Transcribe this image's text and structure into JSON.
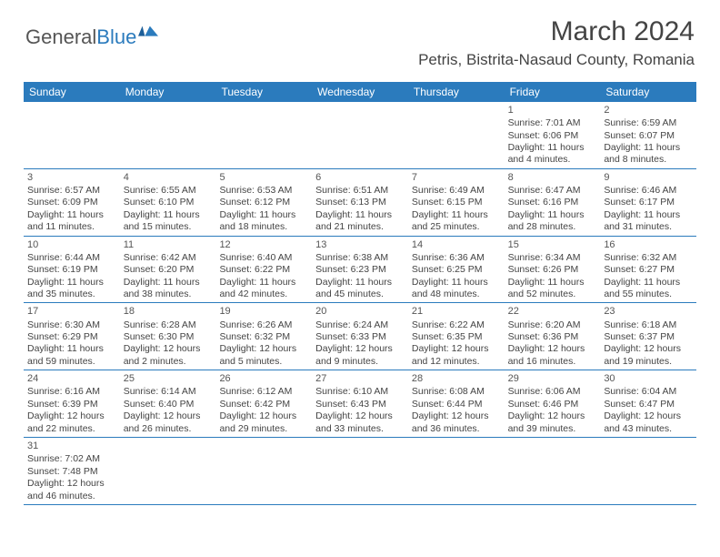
{
  "logo": {
    "text1": "General",
    "text2": "Blue"
  },
  "title": "March 2024",
  "location": "Petris, Bistrita-Nasaud County, Romania",
  "colors": {
    "header_bg": "#2b7bbd",
    "header_text": "#ffffff",
    "body_text": "#444444",
    "border": "#2b7bbd",
    "page_bg": "#ffffff"
  },
  "weekdays": [
    "Sunday",
    "Monday",
    "Tuesday",
    "Wednesday",
    "Thursday",
    "Friday",
    "Saturday"
  ],
  "weeks": [
    [
      null,
      null,
      null,
      null,
      null,
      {
        "n": "1",
        "sr": "Sunrise: 7:01 AM",
        "ss": "Sunset: 6:06 PM",
        "d1": "Daylight: 11 hours",
        "d2": "and 4 minutes."
      },
      {
        "n": "2",
        "sr": "Sunrise: 6:59 AM",
        "ss": "Sunset: 6:07 PM",
        "d1": "Daylight: 11 hours",
        "d2": "and 8 minutes."
      }
    ],
    [
      {
        "n": "3",
        "sr": "Sunrise: 6:57 AM",
        "ss": "Sunset: 6:09 PM",
        "d1": "Daylight: 11 hours",
        "d2": "and 11 minutes."
      },
      {
        "n": "4",
        "sr": "Sunrise: 6:55 AM",
        "ss": "Sunset: 6:10 PM",
        "d1": "Daylight: 11 hours",
        "d2": "and 15 minutes."
      },
      {
        "n": "5",
        "sr": "Sunrise: 6:53 AM",
        "ss": "Sunset: 6:12 PM",
        "d1": "Daylight: 11 hours",
        "d2": "and 18 minutes."
      },
      {
        "n": "6",
        "sr": "Sunrise: 6:51 AM",
        "ss": "Sunset: 6:13 PM",
        "d1": "Daylight: 11 hours",
        "d2": "and 21 minutes."
      },
      {
        "n": "7",
        "sr": "Sunrise: 6:49 AM",
        "ss": "Sunset: 6:15 PM",
        "d1": "Daylight: 11 hours",
        "d2": "and 25 minutes."
      },
      {
        "n": "8",
        "sr": "Sunrise: 6:47 AM",
        "ss": "Sunset: 6:16 PM",
        "d1": "Daylight: 11 hours",
        "d2": "and 28 minutes."
      },
      {
        "n": "9",
        "sr": "Sunrise: 6:46 AM",
        "ss": "Sunset: 6:17 PM",
        "d1": "Daylight: 11 hours",
        "d2": "and 31 minutes."
      }
    ],
    [
      {
        "n": "10",
        "sr": "Sunrise: 6:44 AM",
        "ss": "Sunset: 6:19 PM",
        "d1": "Daylight: 11 hours",
        "d2": "and 35 minutes."
      },
      {
        "n": "11",
        "sr": "Sunrise: 6:42 AM",
        "ss": "Sunset: 6:20 PM",
        "d1": "Daylight: 11 hours",
        "d2": "and 38 minutes."
      },
      {
        "n": "12",
        "sr": "Sunrise: 6:40 AM",
        "ss": "Sunset: 6:22 PM",
        "d1": "Daylight: 11 hours",
        "d2": "and 42 minutes."
      },
      {
        "n": "13",
        "sr": "Sunrise: 6:38 AM",
        "ss": "Sunset: 6:23 PM",
        "d1": "Daylight: 11 hours",
        "d2": "and 45 minutes."
      },
      {
        "n": "14",
        "sr": "Sunrise: 6:36 AM",
        "ss": "Sunset: 6:25 PM",
        "d1": "Daylight: 11 hours",
        "d2": "and 48 minutes."
      },
      {
        "n": "15",
        "sr": "Sunrise: 6:34 AM",
        "ss": "Sunset: 6:26 PM",
        "d1": "Daylight: 11 hours",
        "d2": "and 52 minutes."
      },
      {
        "n": "16",
        "sr": "Sunrise: 6:32 AM",
        "ss": "Sunset: 6:27 PM",
        "d1": "Daylight: 11 hours",
        "d2": "and 55 minutes."
      }
    ],
    [
      {
        "n": "17",
        "sr": "Sunrise: 6:30 AM",
        "ss": "Sunset: 6:29 PM",
        "d1": "Daylight: 11 hours",
        "d2": "and 59 minutes."
      },
      {
        "n": "18",
        "sr": "Sunrise: 6:28 AM",
        "ss": "Sunset: 6:30 PM",
        "d1": "Daylight: 12 hours",
        "d2": "and 2 minutes."
      },
      {
        "n": "19",
        "sr": "Sunrise: 6:26 AM",
        "ss": "Sunset: 6:32 PM",
        "d1": "Daylight: 12 hours",
        "d2": "and 5 minutes."
      },
      {
        "n": "20",
        "sr": "Sunrise: 6:24 AM",
        "ss": "Sunset: 6:33 PM",
        "d1": "Daylight: 12 hours",
        "d2": "and 9 minutes."
      },
      {
        "n": "21",
        "sr": "Sunrise: 6:22 AM",
        "ss": "Sunset: 6:35 PM",
        "d1": "Daylight: 12 hours",
        "d2": "and 12 minutes."
      },
      {
        "n": "22",
        "sr": "Sunrise: 6:20 AM",
        "ss": "Sunset: 6:36 PM",
        "d1": "Daylight: 12 hours",
        "d2": "and 16 minutes."
      },
      {
        "n": "23",
        "sr": "Sunrise: 6:18 AM",
        "ss": "Sunset: 6:37 PM",
        "d1": "Daylight: 12 hours",
        "d2": "and 19 minutes."
      }
    ],
    [
      {
        "n": "24",
        "sr": "Sunrise: 6:16 AM",
        "ss": "Sunset: 6:39 PM",
        "d1": "Daylight: 12 hours",
        "d2": "and 22 minutes."
      },
      {
        "n": "25",
        "sr": "Sunrise: 6:14 AM",
        "ss": "Sunset: 6:40 PM",
        "d1": "Daylight: 12 hours",
        "d2": "and 26 minutes."
      },
      {
        "n": "26",
        "sr": "Sunrise: 6:12 AM",
        "ss": "Sunset: 6:42 PM",
        "d1": "Daylight: 12 hours",
        "d2": "and 29 minutes."
      },
      {
        "n": "27",
        "sr": "Sunrise: 6:10 AM",
        "ss": "Sunset: 6:43 PM",
        "d1": "Daylight: 12 hours",
        "d2": "and 33 minutes."
      },
      {
        "n": "28",
        "sr": "Sunrise: 6:08 AM",
        "ss": "Sunset: 6:44 PM",
        "d1": "Daylight: 12 hours",
        "d2": "and 36 minutes."
      },
      {
        "n": "29",
        "sr": "Sunrise: 6:06 AM",
        "ss": "Sunset: 6:46 PM",
        "d1": "Daylight: 12 hours",
        "d2": "and 39 minutes."
      },
      {
        "n": "30",
        "sr": "Sunrise: 6:04 AM",
        "ss": "Sunset: 6:47 PM",
        "d1": "Daylight: 12 hours",
        "d2": "and 43 minutes."
      }
    ],
    [
      {
        "n": "31",
        "sr": "Sunrise: 7:02 AM",
        "ss": "Sunset: 7:48 PM",
        "d1": "Daylight: 12 hours",
        "d2": "and 46 minutes."
      },
      null,
      null,
      null,
      null,
      null,
      null
    ]
  ]
}
